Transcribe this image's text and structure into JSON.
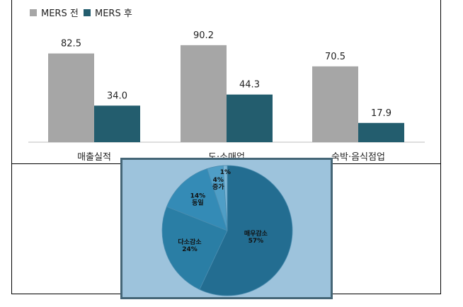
{
  "colors": {
    "before": "#a6a6a6",
    "after": "#235d6e"
  },
  "legend": {
    "before": "MERS 전",
    "after": "MERS 후"
  },
  "chart_data": [
    {
      "type": "bar",
      "categories": [
        "매출실적",
        "도·소매업",
        "숙박·음식점업"
      ],
      "series": [
        {
          "name": "MERS 전",
          "values": [
            82.5,
            90.2,
            70.5
          ]
        },
        {
          "name": "MERS 후",
          "values": [
            34.0,
            44.3,
            17.9
          ]
        }
      ],
      "value_labels": [
        [
          "82.5",
          "90.2",
          "70.5"
        ],
        [
          "34.0",
          "44.3",
          "17.9"
        ]
      ],
      "ylim": [
        0,
        100
      ],
      "legend_position": "top-left",
      "grid": false
    },
    {
      "type": "pie",
      "slices": [
        {
          "label": "매우감소",
          "pct_label": "57%",
          "value": 57,
          "color": "#236d91"
        },
        {
          "label": "다소감소",
          "pct_label": "24%",
          "value": 24,
          "color": "#2a7ea5"
        },
        {
          "label": "동일",
          "pct_label": "14%",
          "value": 14,
          "color": "#348bb6"
        },
        {
          "label": "증가",
          "pct_label": "4%",
          "value": 4,
          "color": "#4f9ec6"
        },
        {
          "label": "",
          "pct_label": "1%",
          "value": 1,
          "color": "#7fb7d6"
        }
      ]
    }
  ]
}
